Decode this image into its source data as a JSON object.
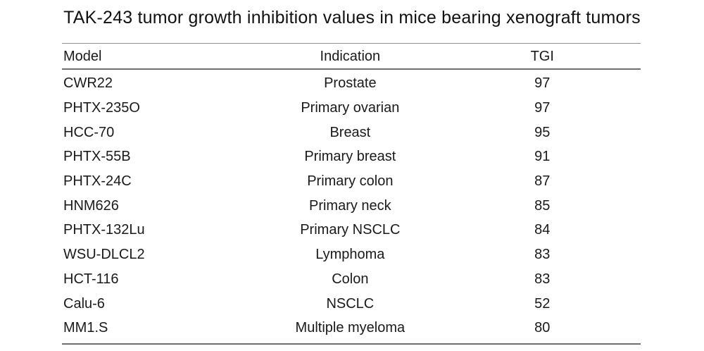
{
  "title": "TAK-243 tumor growth inhibition values in mice bearing xenograft tumors",
  "table": {
    "columns": [
      "Model",
      "Indication",
      "TGI"
    ],
    "rows": [
      {
        "model": "CWR22",
        "indication": "Prostate",
        "tgi": "97"
      },
      {
        "model": "PHTX-235O",
        "indication": "Primary ovarian",
        "tgi": "97"
      },
      {
        "model": "HCC-70",
        "indication": "Breast",
        "tgi": "95"
      },
      {
        "model": "PHTX-55B",
        "indication": "Primary breast",
        "tgi": "91"
      },
      {
        "model": "PHTX-24C",
        "indication": "Primary colon",
        "tgi": "87"
      },
      {
        "model": "HNM626",
        "indication": "Primary neck",
        "tgi": "85"
      },
      {
        "model": "PHTX-132Lu",
        "indication": "Primary NSCLC",
        "tgi": "84"
      },
      {
        "model": "WSU-DLCL2",
        "indication": "Lymphoma",
        "tgi": "83"
      },
      {
        "model": "HCT-116",
        "indication": "Colon",
        "tgi": "83"
      },
      {
        "model": "Calu-6",
        "indication": "NSCLC",
        "tgi": "52"
      },
      {
        "model": "MM1.S",
        "indication": "Multiple myeloma",
        "tgi": "80"
      }
    ]
  },
  "chart_data": {
    "type": "table",
    "title": "TAK-243 tumor growth inhibition values in mice bearing xenograft tumors",
    "columns": [
      "Model",
      "Indication",
      "TGI"
    ],
    "categories": [
      "CWR22",
      "PHTX-235O",
      "HCC-70",
      "PHTX-55B",
      "PHTX-24C",
      "HNM626",
      "PHTX-132Lu",
      "WSU-DLCL2",
      "HCT-116",
      "Calu-6",
      "MM1.S"
    ],
    "indications": [
      "Prostate",
      "Primary ovarian",
      "Breast",
      "Primary breast",
      "Primary colon",
      "Primary neck",
      "Primary NSCLC",
      "Lymphoma",
      "Colon",
      "NSCLC",
      "Multiple myeloma"
    ],
    "values": [
      97,
      97,
      95,
      91,
      87,
      85,
      84,
      83,
      83,
      52,
      80
    ]
  },
  "colors": {
    "background": "#ffffff",
    "text": "#1a1a1a",
    "rule_light": "#8e8e8e",
    "rule_dark": "#6e6e6e"
  }
}
